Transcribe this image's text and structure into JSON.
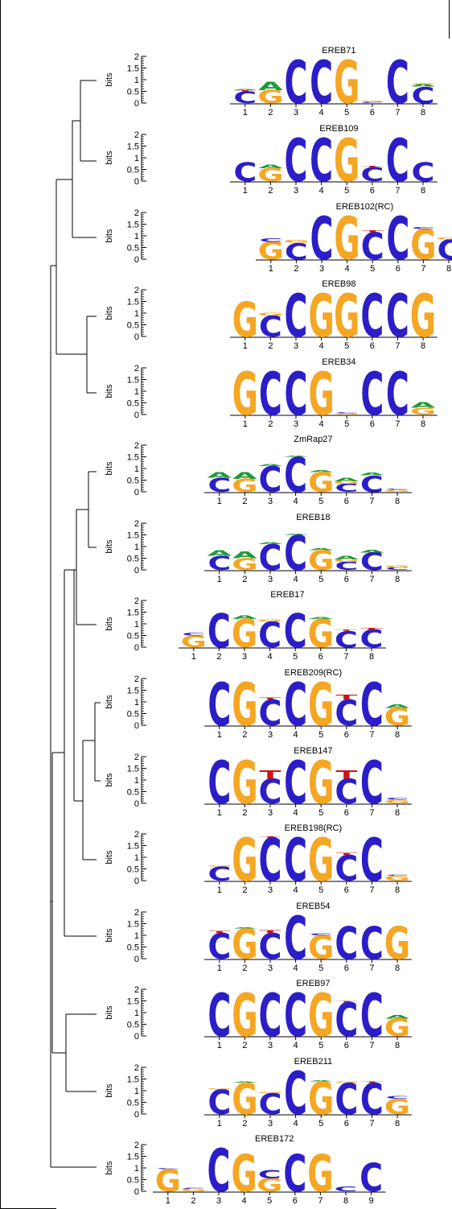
{
  "axis": {
    "unit_label": "bits",
    "ticks": [
      "0",
      "0.5",
      "1",
      "1.5",
      "2"
    ]
  },
  "colors": {
    "C": "#2b1ec8",
    "G": "#f5a623",
    "A": "#1f9a3a",
    "T": "#d01414"
  },
  "logos": [
    {
      "name": "EREB71",
      "positions": [
        [
          [
            "C",
            0.5
          ],
          [
            "T",
            0.05
          ],
          [
            "A",
            0.05
          ]
        ],
        [
          [
            "G",
            0.55
          ],
          [
            "A",
            0.35
          ]
        ],
        [
          [
            "C",
            1.85
          ]
        ],
        [
          [
            "C",
            1.85
          ]
        ],
        [
          [
            "G",
            1.85
          ]
        ],
        [
          [
            "C",
            0.05
          ],
          [
            "G",
            0.05
          ]
        ],
        [
          [
            "C",
            1.85
          ]
        ],
        [
          [
            "C",
            0.7
          ],
          [
            "A",
            0.1
          ],
          [
            "G",
            0.05
          ]
        ]
      ]
    },
    {
      "name": "EREB109",
      "positions": [
        [
          [
            "C",
            0.8
          ]
        ],
        [
          [
            "G",
            0.55
          ],
          [
            "A",
            0.15
          ]
        ],
        [
          [
            "C",
            1.85
          ]
        ],
        [
          [
            "C",
            1.85
          ]
        ],
        [
          [
            "G",
            1.85
          ]
        ],
        [
          [
            "C",
            0.6
          ],
          [
            "T",
            0.05
          ]
        ],
        [
          [
            "C",
            1.85
          ]
        ],
        [
          [
            "C",
            0.8
          ]
        ]
      ]
    },
    {
      "name": "EREB102(RC)",
      "positions": [
        [
          [
            "G",
            0.75
          ],
          [
            "C",
            0.15
          ]
        ],
        [
          [
            "C",
            0.7
          ],
          [
            "G",
            0.1
          ]
        ],
        [
          [
            "C",
            1.85
          ]
        ],
        [
          [
            "G",
            1.85
          ]
        ],
        [
          [
            "C",
            1.15
          ],
          [
            "T",
            0.08
          ]
        ],
        [
          [
            "C",
            1.85
          ]
        ],
        [
          [
            "G",
            1.3
          ],
          [
            "C",
            0.08
          ]
        ],
        [
          [
            "C",
            0.85
          ],
          [
            "G",
            0.08
          ]
        ]
      ]
    },
    {
      "name": "EREB98",
      "positions": [
        [
          [
            "G",
            1.5
          ]
        ],
        [
          [
            "C",
            0.9
          ],
          [
            "G",
            0.1
          ]
        ],
        [
          [
            "C",
            1.85
          ]
        ],
        [
          [
            "G",
            1.85
          ]
        ],
        [
          [
            "G",
            1.85
          ]
        ],
        [
          [
            "C",
            1.85
          ]
        ],
        [
          [
            "C",
            1.85
          ]
        ],
        [
          [
            "G",
            1.85
          ]
        ]
      ]
    },
    {
      "name": "EREB34",
      "positions": [
        [
          [
            "G",
            1.85
          ]
        ],
        [
          [
            "C",
            1.85
          ]
        ],
        [
          [
            "C",
            1.85
          ]
        ],
        [
          [
            "G",
            1.85
          ]
        ],
        [
          [
            "G",
            0.05
          ],
          [
            "C",
            0.05
          ]
        ],
        [
          [
            "C",
            1.85
          ]
        ],
        [
          [
            "C",
            1.85
          ]
        ],
        [
          [
            "G",
            0.3
          ],
          [
            "A",
            0.25
          ]
        ]
      ]
    },
    {
      "name": "ZmRap27",
      "positions": [
        [
          [
            "C",
            0.6
          ],
          [
            "A",
            0.25
          ]
        ],
        [
          [
            "G",
            0.55
          ],
          [
            "A",
            0.3
          ]
        ],
        [
          [
            "C",
            1.1
          ],
          [
            "A",
            0.08
          ]
        ],
        [
          [
            "C",
            1.5
          ],
          [
            "A",
            0.05
          ]
        ],
        [
          [
            "G",
            0.85
          ],
          [
            "A",
            0.08
          ]
        ],
        [
          [
            "C",
            0.35
          ],
          [
            "G",
            0.1
          ],
          [
            "A",
            0.15
          ]
        ],
        [
          [
            "C",
            0.7
          ],
          [
            "A",
            0.1
          ]
        ],
        [
          [
            "G",
            0.08
          ],
          [
            "C",
            0.05
          ]
        ]
      ]
    },
    {
      "name": "EREB18",
      "positions": [
        [
          [
            "C",
            0.6
          ],
          [
            "A",
            0.25
          ]
        ],
        [
          [
            "G",
            0.5
          ],
          [
            "A",
            0.3
          ]
        ],
        [
          [
            "C",
            1.1
          ],
          [
            "A",
            0.08
          ]
        ],
        [
          [
            "C",
            1.5
          ],
          [
            "A",
            0.05
          ]
        ],
        [
          [
            "G",
            0.85
          ],
          [
            "A",
            0.08
          ]
        ],
        [
          [
            "C",
            0.35
          ],
          [
            "G",
            0.1
          ],
          [
            "A",
            0.15
          ]
        ],
        [
          [
            "C",
            0.75
          ],
          [
            "A",
            0.1
          ]
        ],
        [
          [
            "C",
            0.1
          ],
          [
            "G",
            0.08
          ]
        ]
      ]
    },
    {
      "name": "EREB17",
      "positions": [
        [
          [
            "G",
            0.5
          ],
          [
            "C",
            0.1
          ]
        ],
        [
          [
            "C",
            1.45
          ]
        ],
        [
          [
            "G",
            1.2
          ],
          [
            "A",
            0.15
          ]
        ],
        [
          [
            "C",
            1.1
          ],
          [
            "G",
            0.08
          ]
        ],
        [
          [
            "C",
            1.45
          ]
        ],
        [
          [
            "G",
            1.2
          ],
          [
            "A",
            0.08
          ]
        ],
        [
          [
            "C",
            0.7
          ],
          [
            "T",
            0.05
          ]
        ],
        [
          [
            "C",
            0.75
          ],
          [
            "T",
            0.08
          ]
        ]
      ]
    },
    {
      "name": "EREB209(RC)",
      "positions": [
        [
          [
            "C",
            1.85
          ]
        ],
        [
          [
            "G",
            1.85
          ]
        ],
        [
          [
            "C",
            1.1
          ],
          [
            "T",
            0.08
          ]
        ],
        [
          [
            "C",
            1.85
          ]
        ],
        [
          [
            "G",
            1.85
          ]
        ],
        [
          [
            "C",
            1.1
          ],
          [
            "T",
            0.2
          ]
        ],
        [
          [
            "C",
            1.85
          ]
        ],
        [
          [
            "G",
            0.75
          ],
          [
            "A",
            0.15
          ]
        ]
      ]
    },
    {
      "name": "EREB147",
      "positions": [
        [
          [
            "C",
            1.85
          ]
        ],
        [
          [
            "G",
            1.85
          ]
        ],
        [
          [
            "C",
            1.05
          ],
          [
            "T",
            0.35
          ]
        ],
        [
          [
            "C",
            1.85
          ]
        ],
        [
          [
            "G",
            1.85
          ]
        ],
        [
          [
            "C",
            1.05
          ],
          [
            "T",
            0.35
          ]
        ],
        [
          [
            "C",
            1.85
          ]
        ],
        [
          [
            "G",
            0.15
          ],
          [
            "C",
            0.08
          ]
        ]
      ]
    },
    {
      "name": "EREB198(RC)",
      "positions": [
        [
          [
            "C",
            0.6
          ],
          [
            "G",
            0.05
          ]
        ],
        [
          [
            "G",
            1.85
          ]
        ],
        [
          [
            "C",
            1.85
          ],
          [
            "T",
            0.05
          ]
        ],
        [
          [
            "C",
            1.85
          ]
        ],
        [
          [
            "G",
            1.85
          ]
        ],
        [
          [
            "C",
            1.1
          ],
          [
            "T",
            0.08
          ]
        ],
        [
          [
            "C",
            1.85
          ]
        ],
        [
          [
            "G",
            0.2
          ],
          [
            "C",
            0.05
          ]
        ]
      ]
    },
    {
      "name": "EREB54",
      "positions": [
        [
          [
            "C",
            1.1
          ],
          [
            "T",
            0.08
          ]
        ],
        [
          [
            "G",
            1.3
          ],
          [
            "A",
            0.05
          ]
        ],
        [
          [
            "C",
            1.1
          ],
          [
            "T",
            0.1
          ]
        ],
        [
          [
            "C",
            1.85
          ]
        ],
        [
          [
            "G",
            1.0
          ],
          [
            "C",
            0.08
          ]
        ],
        [
          [
            "C",
            1.4
          ]
        ],
        [
          [
            "C",
            1.4
          ]
        ],
        [
          [
            "G",
            1.4
          ]
        ]
      ]
    },
    {
      "name": "EREB97",
      "positions": [
        [
          [
            "C",
            1.85
          ]
        ],
        [
          [
            "G",
            1.85
          ]
        ],
        [
          [
            "C",
            1.85
          ]
        ],
        [
          [
            "C",
            1.85
          ]
        ],
        [
          [
            "G",
            1.85
          ]
        ],
        [
          [
            "C",
            1.45
          ],
          [
            "T",
            0.05
          ]
        ],
        [
          [
            "C",
            1.85
          ]
        ],
        [
          [
            "G",
            0.75
          ],
          [
            "A",
            0.15
          ]
        ]
      ]
    },
    {
      "name": "EREB211",
      "positions": [
        [
          [
            "C",
            1.05
          ],
          [
            "G",
            0.05
          ]
        ],
        [
          [
            "G",
            1.35
          ],
          [
            "A",
            0.05
          ]
        ],
        [
          [
            "C",
            0.9
          ],
          [
            "G",
            0.05
          ]
        ],
        [
          [
            "C",
            1.85
          ]
        ],
        [
          [
            "G",
            1.4
          ],
          [
            "A",
            0.05
          ]
        ],
        [
          [
            "C",
            1.35
          ],
          [
            "G",
            0.05
          ]
        ],
        [
          [
            "C",
            1.35
          ],
          [
            "T",
            0.05
          ]
        ],
        [
          [
            "G",
            0.65
          ],
          [
            "C",
            0.1
          ]
        ]
      ]
    },
    {
      "name": "EREB172",
      "positions": [
        [
          [
            "G",
            0.95
          ],
          [
            "C",
            0.05
          ]
        ],
        [
          [
            "G",
            0.1
          ],
          [
            "C",
            0.05
          ]
        ],
        [
          [
            "C",
            1.85
          ]
        ],
        [
          [
            "G",
            1.6
          ]
        ],
        [
          [
            "G",
            0.55
          ],
          [
            "C",
            0.35
          ]
        ],
        [
          [
            "C",
            1.6
          ]
        ],
        [
          [
            "G",
            1.6
          ]
        ],
        [
          [
            "C",
            0.2
          ]
        ],
        [
          [
            "C",
            1.2
          ]
        ]
      ]
    }
  ]
}
